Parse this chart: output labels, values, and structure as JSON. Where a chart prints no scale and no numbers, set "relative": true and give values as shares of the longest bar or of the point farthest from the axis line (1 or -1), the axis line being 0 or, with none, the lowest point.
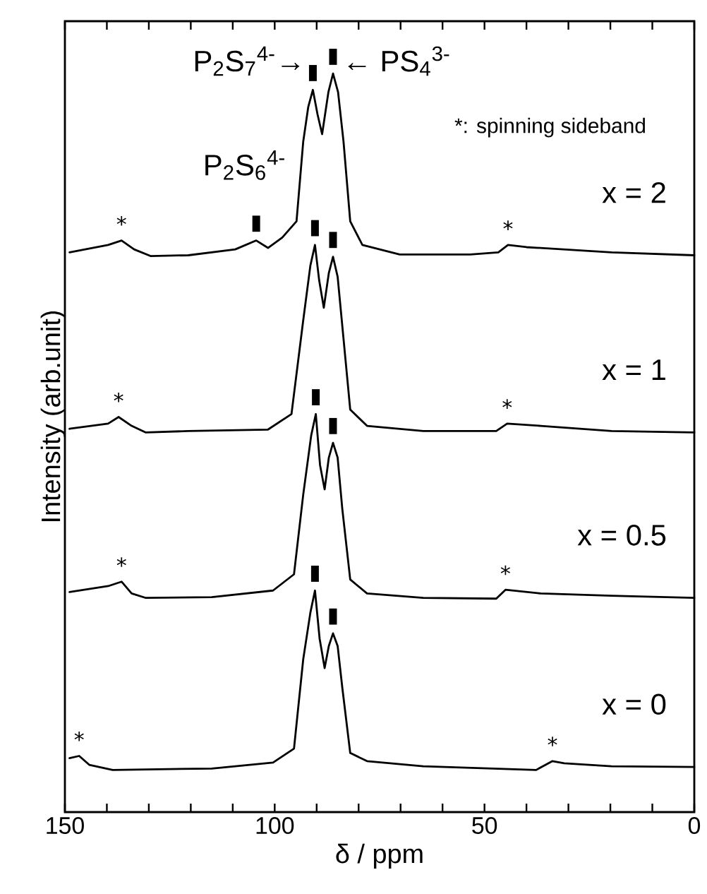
{
  "chart_data": {
    "type": "line",
    "relative": true,
    "xlabel": "δ / ppm",
    "ylabel": "Intensity (arb.unit)",
    "xlim": [
      150,
      0
    ],
    "xticks": [
      150,
      {
        "value": 140,
        "label": null
      },
      {
        "value": 130,
        "label": null
      },
      {
        "value": 120,
        "label": null
      },
      {
        "value": 110,
        "label": null
      },
      100,
      {
        "value": 90,
        "label": null
      },
      {
        "value": 80,
        "label": null
      },
      {
        "value": 70,
        "label": null
      },
      {
        "value": 60,
        "label": null
      },
      50,
      {
        "value": 40,
        "label": null
      },
      {
        "value": 30,
        "label": null
      },
      {
        "value": 20,
        "label": null
      },
      {
        "value": 10,
        "label": null
      },
      0
    ],
    "legend": false,
    "marker": "none",
    "line_style": "solid",
    "grid": false,
    "annotations": [
      "P$_{2}$S$_{7}$$^{4-}$→",
      "← PS$_{4}$$^{3-}$",
      "P$_{2}$S$_{6}$$^{4-}$",
      "*: spinning sideband",
      {
        "text": "*",
        "x": 136.5,
        "y": 0.774
      },
      {
        "text": "*",
        "x": 44.4,
        "y": 0.768
      },
      {
        "text": "*",
        "x": 137.2,
        "y": 0.535
      },
      {
        "text": "*",
        "x": 44.6,
        "y": 0.526
      },
      {
        "text": "*",
        "x": 136.5,
        "y": 0.312
      },
      {
        "text": "*",
        "x": 45.0,
        "y": 0.301
      },
      {
        "text": "*",
        "x": 146.6,
        "y": 0.076
      },
      {
        "text": "*",
        "x": 33.8,
        "y": 0.069
      },
      {
        "text": "▮",
        "x": 90.9,
        "y": 0.978
      },
      {
        "text": "▮",
        "x": 86.1,
        "y": 1.0
      },
      {
        "text": "▮",
        "x": 104.4,
        "y": 0.774
      },
      {
        "text": "▮",
        "x": 90.4,
        "y": 0.768
      },
      {
        "text": "▮",
        "x": 86.1,
        "y": 0.752
      },
      {
        "text": "▮",
        "x": 90.2,
        "y": 0.539
      },
      {
        "text": "▮",
        "x": 86.1,
        "y": 0.5
      },
      {
        "text": "▮",
        "x": 90.4,
        "y": 0.3
      },
      {
        "text": "▮",
        "x": 86.1,
        "y": 0.242
      }
    ],
    "series": [
      {
        "name": "x = 2",
        "color": "#000000",
        "x": [
          148.9,
          139.7,
          136.5,
          133.5,
          129.6,
          120.6,
          109.4,
          104.4,
          101.6,
          98.2,
          94.8,
          93.2,
          92.0,
          90.9,
          89.8,
          88.7,
          87.2,
          86.1,
          84.9,
          83.6,
          82.0,
          79.1,
          70.2,
          53.4,
          46.7,
          44.4,
          40.0,
          19.7,
          0
        ],
        "values": [
          0.758,
          0.768,
          0.774,
          0.762,
          0.753,
          0.754,
          0.762,
          0.774,
          0.764,
          0.778,
          0.8,
          0.908,
          0.955,
          0.978,
          0.945,
          0.918,
          0.975,
          1.0,
          0.975,
          0.908,
          0.8,
          0.768,
          0.755,
          0.755,
          0.758,
          0.768,
          0.765,
          0.758,
          0.754
        ]
      },
      {
        "name": "x = 1",
        "color": "#000000",
        "x": [
          148.9,
          139.7,
          137.2,
          134.1,
          130.7,
          120.6,
          101.6,
          96.0,
          93.2,
          91.5,
          90.4,
          89.4,
          88.3,
          87.1,
          86.1,
          85.0,
          83.6,
          82.0,
          78.0,
          64.6,
          47.2,
          44.6,
          36.6,
          19.7,
          0
        ],
        "values": [
          0.519,
          0.526,
          0.535,
          0.523,
          0.514,
          0.516,
          0.518,
          0.539,
          0.666,
          0.74,
          0.768,
          0.72,
          0.683,
          0.73,
          0.752,
          0.725,
          0.641,
          0.545,
          0.523,
          0.516,
          0.516,
          0.526,
          0.523,
          0.516,
          0.514
        ]
      },
      {
        "name": "x = 0.5",
        "color": "#000000",
        "x": [
          148.9,
          139.7,
          136.5,
          134.1,
          130.7,
          115.0,
          100.4,
          95.4,
          93.2,
          91.3,
          90.2,
          89.2,
          88.1,
          87.1,
          86.1,
          85.0,
          83.9,
          82.0,
          78.0,
          64.6,
          47.2,
          45.0,
          36.6,
          19.7,
          0
        ],
        "values": [
          0.298,
          0.306,
          0.312,
          0.296,
          0.29,
          0.291,
          0.3,
          0.322,
          0.43,
          0.51,
          0.539,
          0.47,
          0.437,
          0.48,
          0.5,
          0.48,
          0.411,
          0.315,
          0.296,
          0.29,
          0.289,
          0.301,
          0.296,
          0.293,
          0.29
        ]
      },
      {
        "name": "x = 0",
        "color": "#000000",
        "x": [
          148.9,
          146.6,
          144.2,
          138.6,
          115.0,
          100.4,
          95.4,
          93.2,
          91.5,
          90.4,
          89.3,
          88.1,
          87.1,
          86.1,
          85.0,
          83.9,
          82.0,
          78.0,
          64.6,
          37.7,
          33.8,
          31.0,
          19.7,
          0
        ],
        "values": [
          0.073,
          0.076,
          0.064,
          0.057,
          0.059,
          0.067,
          0.086,
          0.207,
          0.27,
          0.3,
          0.235,
          0.195,
          0.225,
          0.242,
          0.225,
          0.169,
          0.08,
          0.069,
          0.062,
          0.057,
          0.069,
          0.066,
          0.062,
          0.061
        ]
      }
    ]
  }
}
